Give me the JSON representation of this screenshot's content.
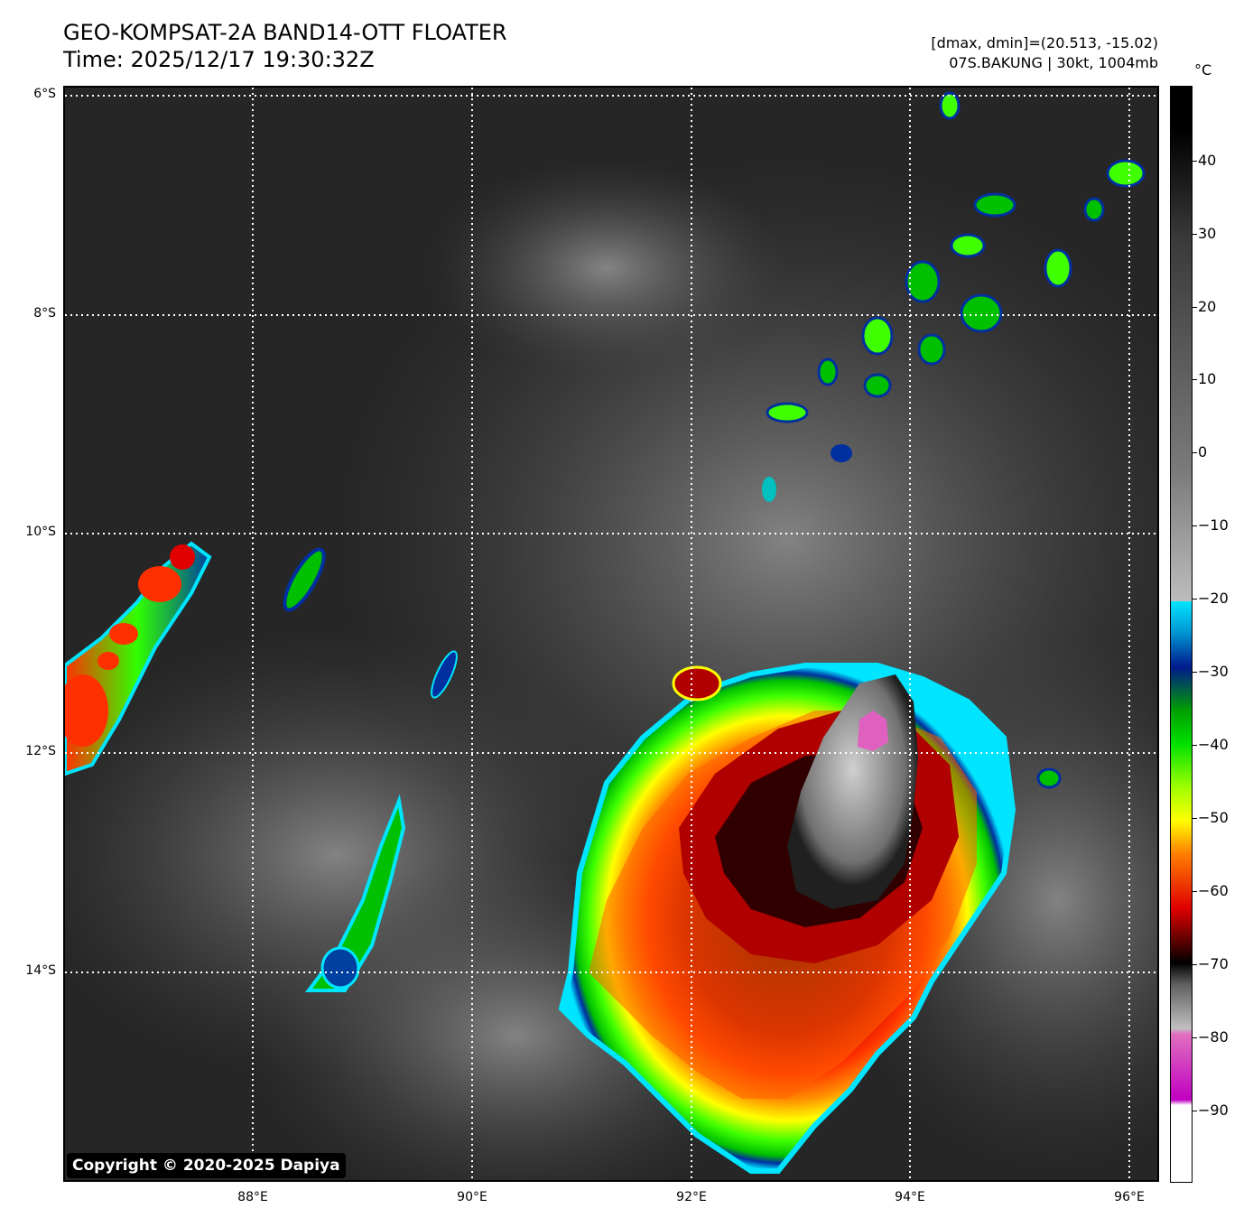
{
  "header": {
    "title": "GEO-KOMPSAT-2A BAND14-OTT FLOATER",
    "time": "Time: 2025/12/17 19:30:32Z",
    "range": "[dmax, dmin]=(20.513, -15.02)",
    "storm": "07S.BAKUNG | 30kt, 1004mb"
  },
  "map": {
    "lat_labels": [
      "6°S",
      "8°S",
      "10°S",
      "12°S",
      "14°S"
    ],
    "lon_labels": [
      "88°E",
      "90°E",
      "92°E",
      "94°E",
      "96°E"
    ],
    "copyright": "Copyright © 2020-2025 Dapiya"
  },
  "colorbar": {
    "unit": "°C",
    "ticks": [
      "40",
      "30",
      "20",
      "10",
      "0",
      "−10",
      "−20",
      "−30",
      "−40",
      "−50",
      "−60",
      "−70",
      "−80",
      "−90"
    ],
    "colors": {
      "warm": "#000000",
      "gray": "#bdbdbd",
      "cyan": "#00e5ff",
      "blue": "#001a8c",
      "green": "#00e000",
      "yellow": "#ffff00",
      "orange": "#ff8000",
      "red": "#e00000",
      "darkred": "#300000",
      "magenta": "#c000c0",
      "white": "#ffffff"
    }
  }
}
